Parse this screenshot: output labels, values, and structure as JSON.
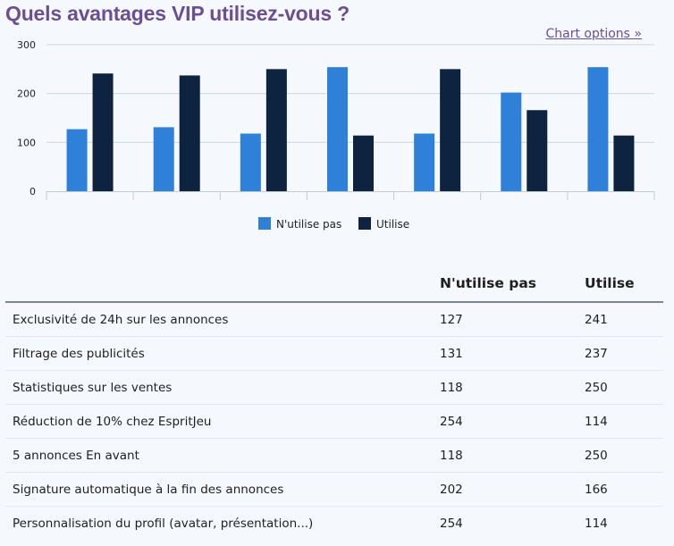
{
  "title": "Quels avantages VIP utilisez-vous ?",
  "chart_options_label": "Chart options »",
  "colors": {
    "series1": "#2f80d9",
    "series2": "#0d2340",
    "title": "#6b4f95"
  },
  "chart_data": {
    "type": "bar",
    "title": "Quels avantages VIP utilisez-vous ?",
    "categories": [
      "Exclusivité de 24h sur les annonces",
      "Filtrage des publicités",
      "Statistiques sur les ventes",
      "Réduction de 10% chez EspritJeu",
      "5 annonces En avant",
      "Signature automatique à la fin des annonces",
      "Personnalisation du profil (avatar, présentation...)"
    ],
    "series": [
      {
        "name": "N'utilise pas",
        "values": [
          127,
          131,
          118,
          254,
          118,
          202,
          254
        ]
      },
      {
        "name": "Utilise",
        "values": [
          241,
          237,
          250,
          114,
          250,
          166,
          114
        ]
      }
    ],
    "yticks": [
      "0",
      "100",
      "200",
      "300"
    ],
    "ylim": [
      0,
      300
    ],
    "grid": true,
    "legend": "bottom-center",
    "show_x_tick_labels": false
  },
  "table": {
    "headers": [
      "",
      "N'utilise pas",
      "Utilise"
    ],
    "rows": [
      [
        "Exclusivité de 24h sur les annonces",
        "127",
        "241"
      ],
      [
        "Filtrage des publicités",
        "131",
        "237"
      ],
      [
        "Statistiques sur les ventes",
        "118",
        "250"
      ],
      [
        "Réduction de 10% chez EspritJeu",
        "254",
        "114"
      ],
      [
        "5 annonces En avant",
        "118",
        "250"
      ],
      [
        "Signature automatique à la fin des annonces",
        "202",
        "166"
      ],
      [
        "Personnalisation du profil (avatar, présentation...)",
        "254",
        "114"
      ]
    ]
  }
}
